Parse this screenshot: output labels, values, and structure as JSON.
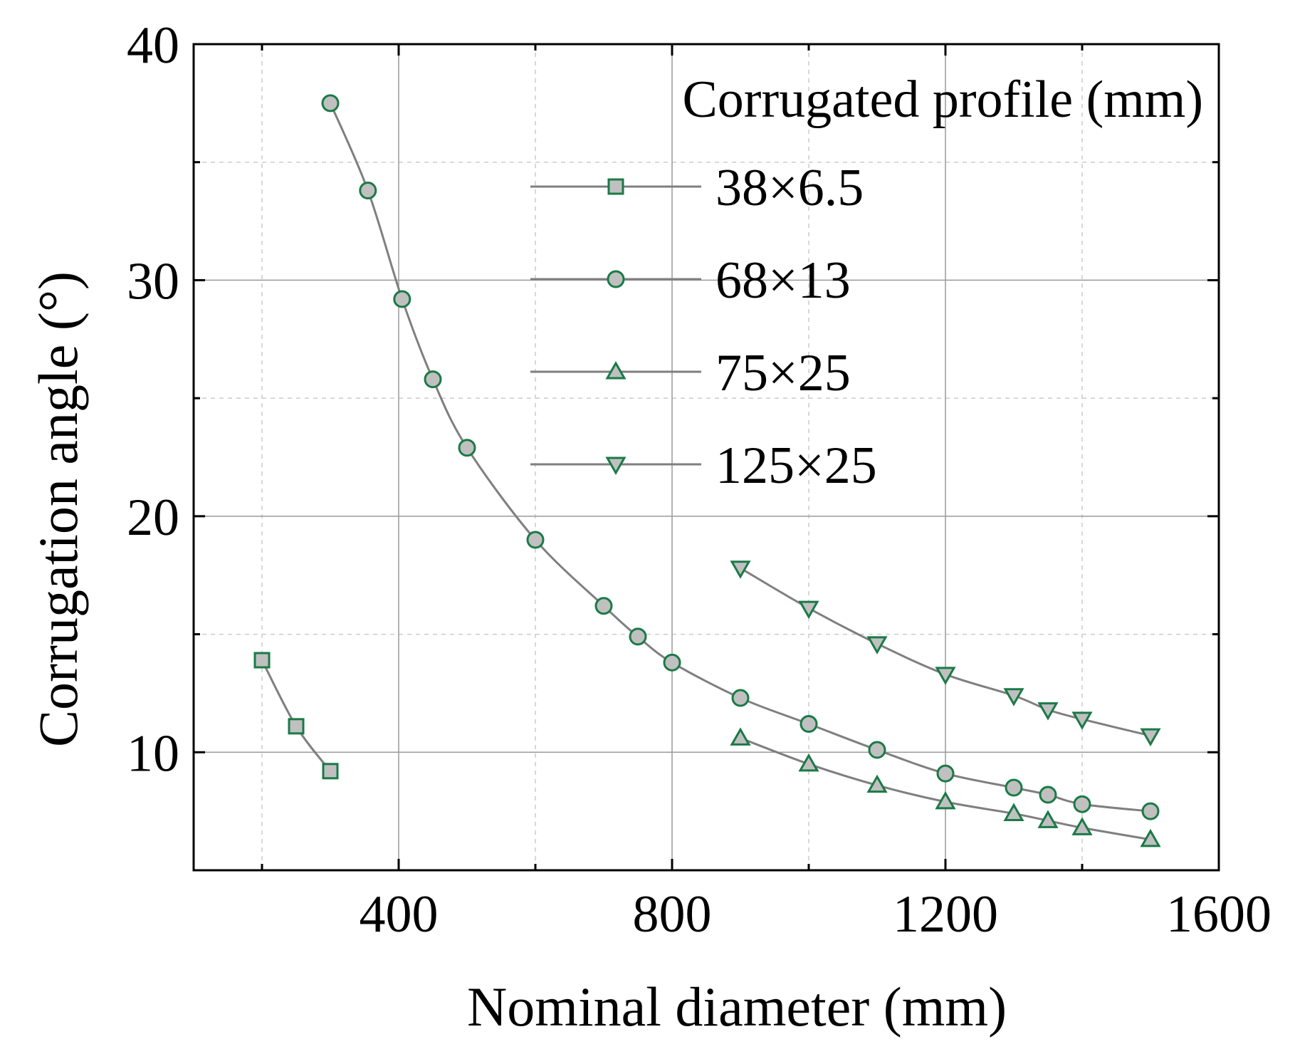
{
  "colors": {
    "line": "#7f7f7f",
    "marker_fill": "#c0c0c0",
    "marker_stroke": "#1a7a47",
    "major_grid": "#9a9a9a",
    "minor_grid": "#cccccc",
    "axis": "#000000"
  },
  "chart_data": {
    "type": "line",
    "title": "",
    "xlabel": "Nominal diameter (mm)",
    "ylabel": "Corrugation angle (°)",
    "xlim": [
      100,
      1600
    ],
    "ylim": [
      5,
      40
    ],
    "x_major_ticks": [
      400,
      800,
      1200,
      1600
    ],
    "x_tick_labels": [
      "400",
      "800",
      "1200",
      "1600"
    ],
    "x_minor_ticks": [
      200,
      600,
      1000,
      1400
    ],
    "y_major_ticks": [
      10,
      20,
      30,
      40
    ],
    "y_tick_labels": [
      "10",
      "20",
      "30",
      "40"
    ],
    "y_minor_ticks": [
      15,
      25,
      35
    ],
    "grid": true,
    "legend_title": "Corrugated profile (mm)",
    "legend_position": "top-right",
    "series": [
      {
        "name": "38×6.5",
        "marker": "square",
        "x": [
          200,
          250,
          300
        ],
        "y": [
          13.9,
          11.1,
          9.2
        ]
      },
      {
        "name": "68×13",
        "marker": "circle",
        "x": [
          300,
          355,
          405,
          450,
          500,
          600,
          700,
          750,
          800,
          900,
          1000,
          1100,
          1200,
          1300,
          1350,
          1400,
          1500
        ],
        "y": [
          37.5,
          33.8,
          29.2,
          25.8,
          22.9,
          19.0,
          16.2,
          14.9,
          13.8,
          12.3,
          11.2,
          10.1,
          9.1,
          8.5,
          8.2,
          7.8,
          7.5
        ]
      },
      {
        "name": "75×25",
        "marker": "triangle-up",
        "x": [
          900,
          1000,
          1100,
          1200,
          1300,
          1350,
          1400,
          1500
        ],
        "y": [
          10.6,
          9.5,
          8.6,
          7.9,
          7.4,
          7.1,
          6.8,
          6.3
        ]
      },
      {
        "name": "125×25",
        "marker": "triangle-down",
        "x": [
          900,
          1000,
          1100,
          1200,
          1300,
          1350,
          1400,
          1500
        ],
        "y": [
          17.8,
          16.1,
          14.6,
          13.3,
          12.4,
          11.8,
          11.4,
          10.7
        ]
      }
    ]
  }
}
